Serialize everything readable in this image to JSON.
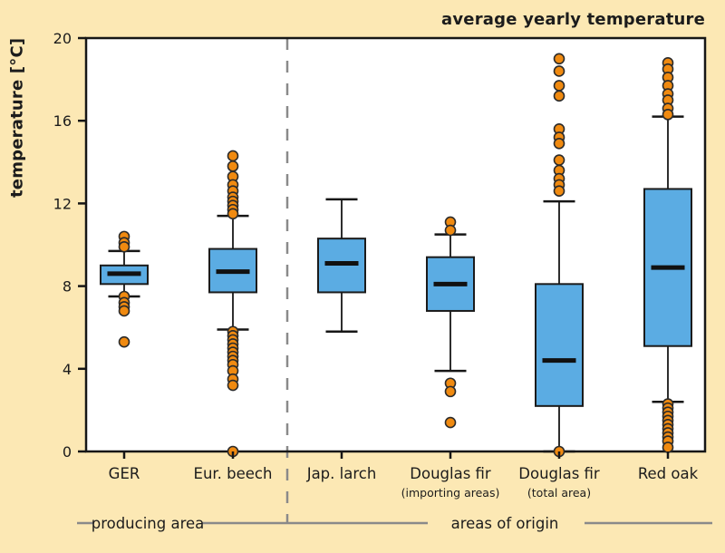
{
  "title": "average yearly temperature",
  "ylabel": "temperature [°C]",
  "group_labels": {
    "left": "producing area",
    "right": "areas of origin"
  },
  "colors": {
    "background": "#FCE8B4",
    "plot_background": "#FFFFFF",
    "axis": "#161616",
    "box_fill": "#5BACE3",
    "box_stroke": "#1b1b1b",
    "median": "#111111",
    "outlier_fill": "#F08A10",
    "outlier_stroke": "#2b2b2b",
    "divider": "#8a8a8a",
    "annotation_line": "#8a8a8a",
    "text": "#1c1c1c"
  },
  "chart_data": {
    "type": "boxplot",
    "title": "average yearly temperature",
    "ylabel": "temperature [°C]",
    "ylim": [
      0,
      20
    ],
    "yticks": [
      0,
      4,
      8,
      12,
      16,
      20
    ],
    "grid": false,
    "legend": "none",
    "divider_after_index": 1,
    "groups": [
      "producing area",
      "areas of origin"
    ],
    "series": [
      {
        "category": "GER",
        "sublabel": "",
        "group": "producing area",
        "whisker_low": 7.5,
        "q1": 8.1,
        "median": 8.6,
        "q3": 9.0,
        "whisker_high": 9.7,
        "outliers": [
          10.4,
          10.1,
          9.9,
          7.5,
          7.2,
          7.0,
          6.8,
          5.3
        ]
      },
      {
        "category": "Eur. beech",
        "sublabel": "",
        "group": "producing area",
        "whisker_low": 5.9,
        "q1": 7.7,
        "median": 8.7,
        "q3": 9.8,
        "whisker_high": 11.4,
        "outliers": [
          14.3,
          13.8,
          13.3,
          12.9,
          12.6,
          12.3,
          12.1,
          11.9,
          11.7,
          11.5,
          5.8,
          5.6,
          5.4,
          5.2,
          5.0,
          4.8,
          4.6,
          4.4,
          4.2,
          3.9,
          3.5,
          3.2,
          0.0
        ]
      },
      {
        "category": "Jap. larch",
        "sublabel": "",
        "group": "areas of origin",
        "whisker_low": 5.8,
        "q1": 7.7,
        "median": 9.1,
        "q3": 10.3,
        "whisker_high": 12.2,
        "outliers": []
      },
      {
        "category": "Douglas fir",
        "sublabel": "(importing areas)",
        "group": "areas of origin",
        "whisker_low": 3.9,
        "q1": 6.8,
        "median": 8.1,
        "q3": 9.4,
        "whisker_high": 10.5,
        "outliers": [
          11.1,
          10.7,
          3.3,
          2.9,
          1.4
        ]
      },
      {
        "category": "Douglas fir",
        "sublabel": "(total area)",
        "group": "areas of origin",
        "whisker_low": 0.0,
        "q1": 2.2,
        "median": 4.4,
        "q3": 8.1,
        "whisker_high": 12.1,
        "outliers": [
          19.0,
          18.4,
          17.7,
          17.2,
          15.6,
          15.2,
          14.9,
          14.1,
          13.6,
          13.2,
          12.9,
          12.6,
          0.0
        ]
      },
      {
        "category": "Red oak",
        "sublabel": "",
        "group": "areas of origin",
        "whisker_low": 2.4,
        "q1": 5.1,
        "median": 8.9,
        "q3": 12.7,
        "whisker_high": 16.2,
        "outliers": [
          18.8,
          18.5,
          18.1,
          17.7,
          17.3,
          17.0,
          16.6,
          16.3,
          2.3,
          2.1,
          1.9,
          1.7,
          1.5,
          1.3,
          1.1,
          0.9,
          0.7,
          0.5,
          0.2
        ]
      }
    ]
  }
}
